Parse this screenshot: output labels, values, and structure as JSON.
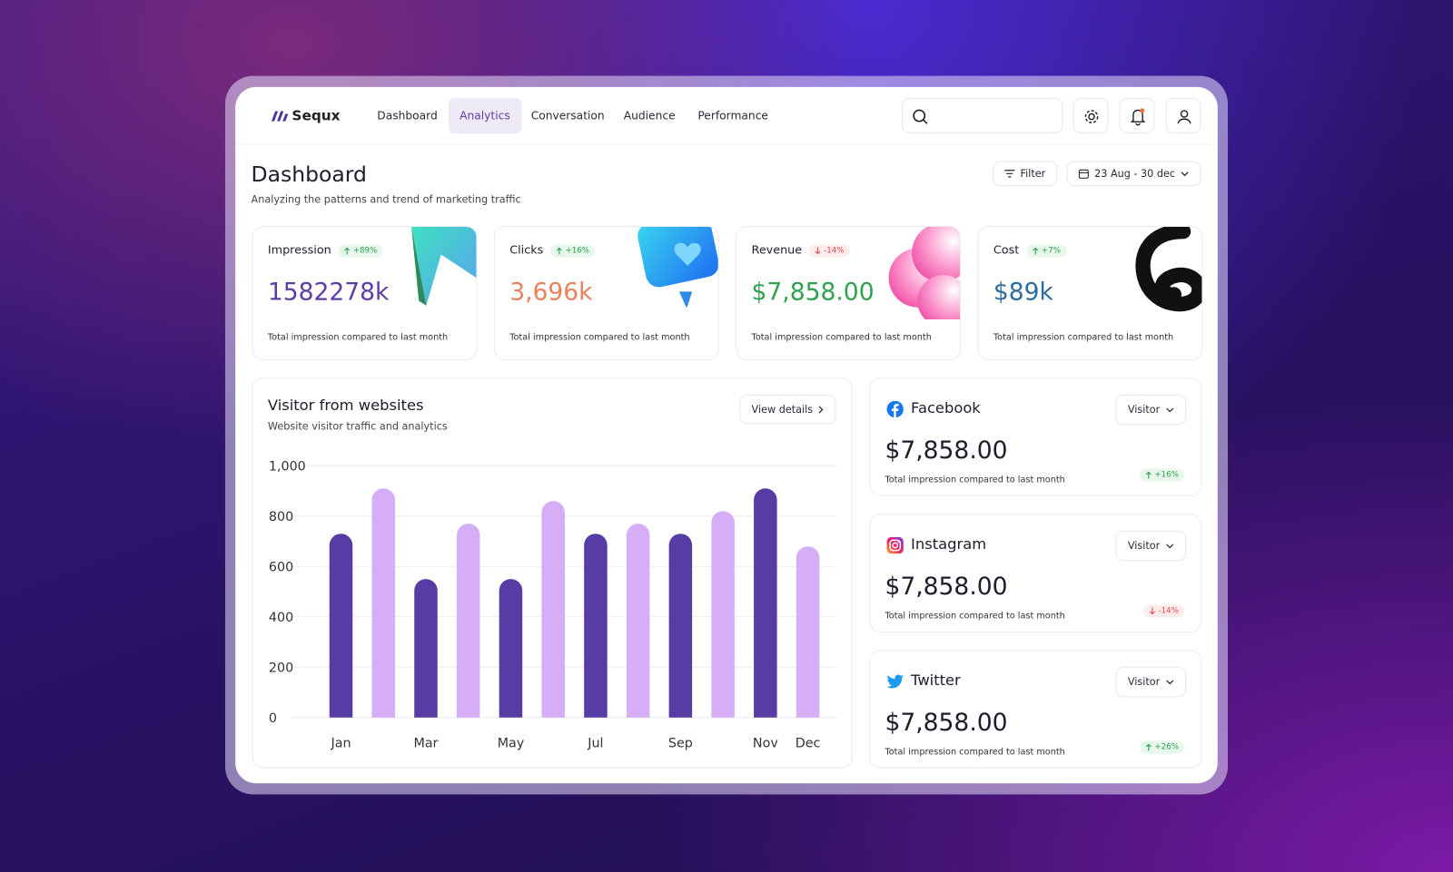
{
  "brand": "Sequx",
  "nav": {
    "items": [
      "Dashboard",
      "Analytics",
      "Conversation",
      "Audience",
      "Performance"
    ],
    "active": 1
  },
  "header": {
    "title": "Dashboard",
    "subtitle": "Analyzing the patterns and trend of marketing traffic",
    "filter": "Filter",
    "date_range": "23 Aug - 30 dec"
  },
  "cards": [
    {
      "label": "Impression",
      "change": "+89%",
      "value": "1582278k",
      "color": "#5b3ea6",
      "description": "Total impression compared to last month"
    },
    {
      "label": "Clicks",
      "change": "+16%",
      "value": "3,696k",
      "color": "#e9835e",
      "description": "Total impression compared to last month"
    },
    {
      "label": "Revenue",
      "change": "-14%",
      "value": "$7,858.00",
      "color": "#2fa24f",
      "description": "Total impression compared to last month"
    },
    {
      "label": "Cost",
      "change": "+7%",
      "value": "$89k",
      "color": "#2e6b9e",
      "description": "Total impression compared to last month"
    }
  ],
  "chart_data": {
    "type": "bar",
    "title": "Visitor from websites",
    "subtitle": "Website visitor traffic and analytics",
    "button": "View details",
    "categories": [
      "Jan",
      null,
      "Mar",
      null,
      "May",
      null,
      "Jul",
      null,
      "Sep",
      null,
      "Nov",
      "Dec"
    ],
    "values": [
      730,
      910,
      550,
      770,
      550,
      860,
      730,
      770,
      730,
      820,
      910,
      680
    ],
    "colors": [
      "#563ca4",
      "#d6aef8",
      "#563ca4",
      "#d6aef8",
      "#563ca4",
      "#d6aef8",
      "#563ca4",
      "#d6aef8",
      "#563ca4",
      "#d6aef8",
      "#563ca4",
      "#d6aef8"
    ],
    "ylim": [
      0,
      1000
    ],
    "yticks": [
      0,
      200,
      400,
      600,
      800,
      {
        "value": 1000,
        "label": "1,000"
      }
    ],
    "grid": true
  },
  "social": [
    {
      "name": "Facebook",
      "dropdown": "Visitor",
      "value": "$7,858.00",
      "description": "Total impression compared to last month",
      "change": "+16%"
    },
    {
      "name": "Instagram",
      "dropdown": "Visitor",
      "value": "$7,858.00",
      "description": "Total impression compared to last month",
      "change": "-14%"
    },
    {
      "name": "Twitter",
      "dropdown": "Visitor",
      "value": "$7,858.00",
      "description": "Total impression compared to last month",
      "change": "+26%"
    }
  ]
}
